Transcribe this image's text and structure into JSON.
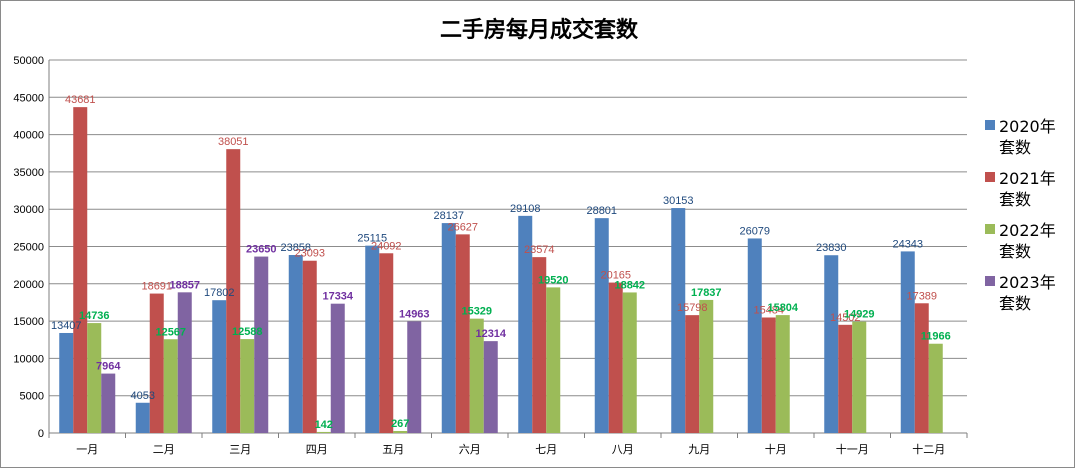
{
  "chart_data": {
    "type": "bar",
    "title": "二手房每月成交套数",
    "xlabel": "",
    "ylabel": "",
    "ylim": [
      0,
      50000
    ],
    "yticks": [
      0,
      5000,
      10000,
      15000,
      20000,
      25000,
      30000,
      35000,
      40000,
      45000,
      50000
    ],
    "grid": true,
    "legend_position": "right",
    "categories": [
      "一月",
      "二月",
      "三月",
      "四月",
      "五月",
      "六月",
      "七月",
      "八月",
      "九月",
      "十月",
      "十一月",
      "十二月"
    ],
    "series": [
      {
        "name": "2020年套数",
        "color": "#4F81BD",
        "label_color": "#1F497D",
        "values": [
          13407,
          4053,
          17802,
          23858,
          25115,
          28137,
          29108,
          28801,
          30153,
          26079,
          23830,
          24343
        ]
      },
      {
        "name": "2021年套数",
        "color": "#C0504D",
        "label_color": "#C0504D",
        "values": [
          43681,
          18691,
          38051,
          23093,
          24092,
          26627,
          23574,
          20165,
          15798,
          15484,
          14502,
          17389
        ]
      },
      {
        "name": "2022年套数",
        "color": "#9BBB59",
        "label_color": "#00B050",
        "values": [
          14736,
          12567,
          12588,
          142,
          267,
          15329,
          19520,
          18842,
          17837,
          15804,
          14929,
          11966
        ]
      },
      {
        "name": "2023年套数",
        "color": "#8064A2",
        "label_color": "#7030A0",
        "values": [
          7964,
          18857,
          23650,
          17334,
          14963,
          12314,
          null,
          null,
          null,
          null,
          null,
          null
        ]
      }
    ]
  }
}
